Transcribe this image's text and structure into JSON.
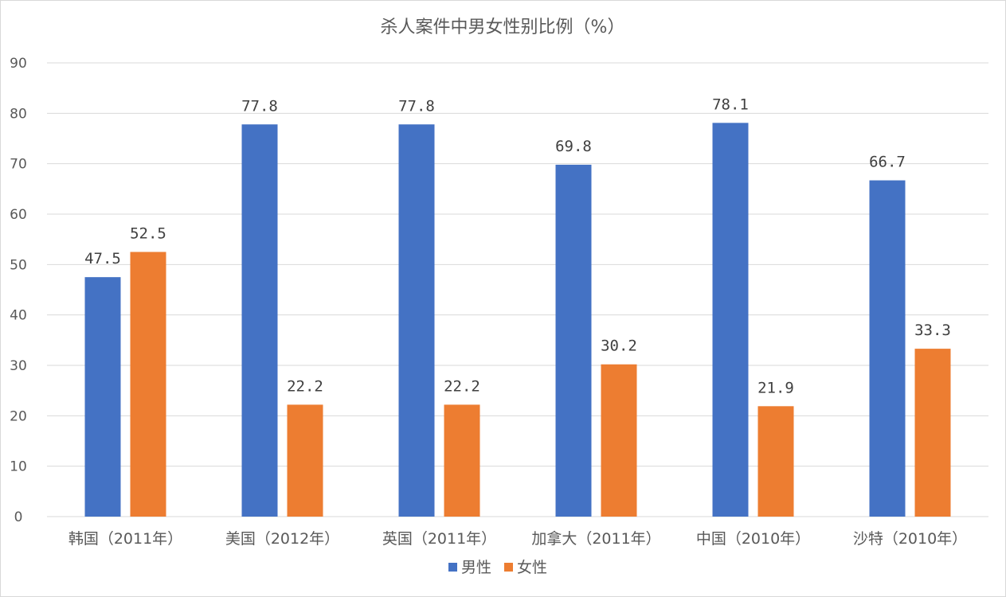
{
  "chart_data": {
    "type": "bar",
    "title": "杀人案件中男女性别比例（%）",
    "xlabel": "",
    "ylabel": "",
    "ylim": [
      0,
      90
    ],
    "yticks": [
      0,
      10,
      20,
      30,
      40,
      50,
      60,
      70,
      80,
      90
    ],
    "grid": true,
    "legend_position": "bottom",
    "categories": [
      "韩国（2011年）",
      "美国（2012年）",
      "英国（2011年）",
      "加拿大（2011年）",
      "中国（2010年）",
      "沙特（2010年）"
    ],
    "series": [
      {
        "name": "男性",
        "color": "#4472C4",
        "values": [
          47.5,
          77.8,
          77.8,
          69.8,
          78.1,
          66.7
        ],
        "labels": [
          "47.5",
          "77.8",
          "77.8",
          "69.8",
          "78.1",
          "66.7"
        ]
      },
      {
        "name": "女性",
        "color": "#ED7D31",
        "values": [
          52.5,
          22.2,
          22.2,
          30.2,
          21.9,
          33.3
        ],
        "labels": [
          "52.5",
          "22.2",
          "22.2",
          "30.2",
          "21.9",
          "33.3"
        ]
      }
    ]
  }
}
